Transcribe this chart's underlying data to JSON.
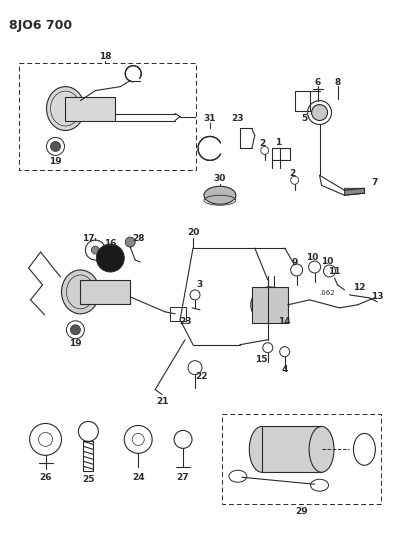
{
  "title": "8JO6 700",
  "bg_color": "#ffffff",
  "line_color": "#2a2a2a",
  "title_fontsize": 9,
  "label_fontsize": 6.5,
  "fig_width": 3.94,
  "fig_height": 5.33,
  "dpi": 100
}
